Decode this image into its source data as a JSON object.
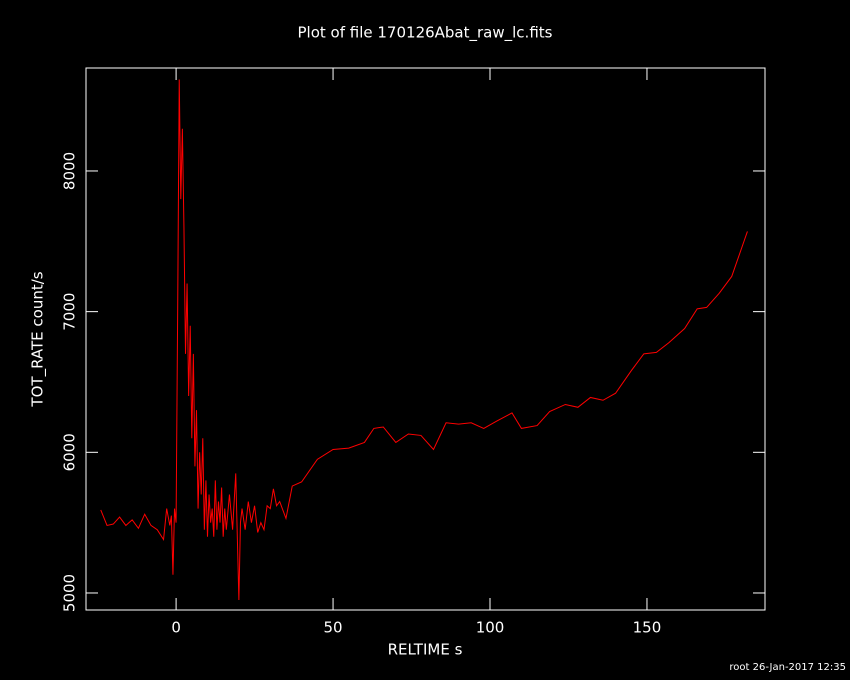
{
  "chart_data": {
    "type": "line",
    "title": "Plot of file 170126Abat_raw_lc.fits",
    "xlabel": "RELTIME  s",
    "ylabel": "TOT_RATE  count/s",
    "footer": "root 26-Jan-2017 12:35",
    "color": "#ff0000",
    "xlim": [
      -28.7,
      187.6
    ],
    "ylim": [
      4879,
      8732
    ],
    "xticks": [
      0,
      50,
      100,
      150
    ],
    "yticks": [
      5000,
      6000,
      7000,
      8000
    ],
    "x": [
      -24,
      -22,
      -20,
      -18,
      -16,
      -14,
      -12,
      -10,
      -8,
      -6,
      -4,
      -3,
      -2,
      -1.5,
      -1,
      -0.5,
      0,
      0.5,
      1,
      1.5,
      2,
      2.5,
      3,
      3.5,
      4,
      4.5,
      5,
      5.5,
      6,
      6.5,
      7,
      7.5,
      8,
      8.5,
      9,
      9.5,
      10,
      10.5,
      11,
      11.5,
      12,
      12.5,
      13,
      13.5,
      14,
      14.5,
      15,
      15.5,
      16,
      17,
      18,
      19,
      20,
      20.5,
      21,
      22,
      23,
      24,
      25,
      26,
      27,
      28,
      29,
      30,
      31,
      32,
      33,
      35,
      37,
      40,
      45,
      50,
      55,
      60,
      63,
      66,
      70,
      74,
      78,
      82,
      86,
      90,
      94,
      98,
      102,
      107,
      110,
      115,
      119,
      124,
      128,
      132,
      136,
      140,
      145,
      149,
      153,
      157,
      162,
      166,
      169,
      173,
      177,
      182
    ],
    "values": [
      5590,
      5480,
      5490,
      5540,
      5480,
      5520,
      5460,
      5560,
      5480,
      5450,
      5380,
      5600,
      5480,
      5550,
      5130,
      5600,
      5500,
      7000,
      8650,
      7800,
      8300,
      7600,
      6700,
      7200,
      6400,
      6900,
      6100,
      6700,
      5900,
      6300,
      5600,
      6000,
      5700,
      6100,
      5450,
      5800,
      5400,
      5700,
      5500,
      5600,
      5400,
      5800,
      5450,
      5650,
      5500,
      5750,
      5400,
      5600,
      5450,
      5700,
      5450,
      5850,
      4950,
      5500,
      5600,
      5450,
      5650,
      5500,
      5620,
      5430,
      5500,
      5450,
      5620,
      5600,
      5740,
      5620,
      5650,
      5530,
      5760,
      5790,
      5950,
      6020,
      6030,
      6070,
      6170,
      6180,
      6070,
      6130,
      6120,
      6020,
      6210,
      6200,
      6210,
      6170,
      6220,
      6280,
      6170,
      6190,
      6290,
      6340,
      6320,
      6390,
      6370,
      6420,
      6580,
      6700,
      6710,
      6780,
      6880,
      7020,
      7030,
      7130,
      7250,
      7570
    ]
  }
}
